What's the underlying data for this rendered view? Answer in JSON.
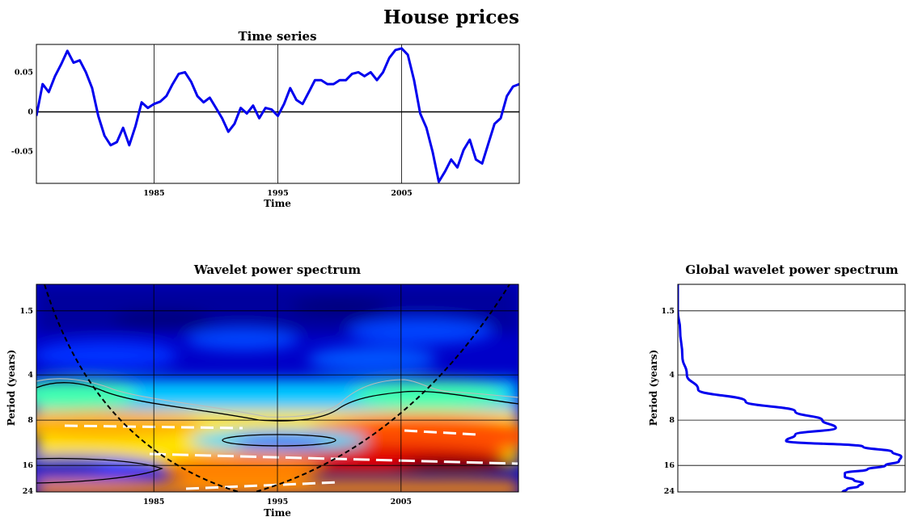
{
  "figure": {
    "title": "House prices",
    "title_color": "#e31a1c"
  },
  "chart_data": [
    {
      "type": "line",
      "title": "Time series",
      "xlabel": "Time",
      "ylabel": "",
      "xlim": [
        1975.5,
        2014.5
      ],
      "ylim": [
        -0.09,
        0.085
      ],
      "xticks": [
        1985,
        1995,
        2005
      ],
      "yticks": [
        0.05,
        0,
        -0.05
      ],
      "ytick_labels": [
        "0.05",
        "0",
        "-0.05"
      ],
      "grid": true,
      "line_color": "#0000ee",
      "series": [
        {
          "x": [
            1975.5,
            1976,
            1976.5,
            1977,
            1977.5,
            1978,
            1978.5,
            1979,
            1979.5,
            1980,
            1980.5,
            1981,
            1981.5,
            1982,
            1982.5,
            1983,
            1983.5,
            1984,
            1984.5,
            1985,
            1985.5,
            1986,
            1986.5,
            1987,
            1987.5,
            1988,
            1988.5,
            1989,
            1989.5,
            1990,
            1990.5,
            1991,
            1991.5,
            1992,
            1992.5,
            1993,
            1993.5,
            1994,
            1994.5,
            1995,
            1995.5,
            1996,
            1996.5,
            1997,
            1997.5,
            1998,
            1998.5,
            1999,
            1999.5,
            2000,
            2000.5,
            2001,
            2001.5,
            2002,
            2002.5,
            2003,
            2003.5,
            2004,
            2004.5,
            2005,
            2005.5,
            2006,
            2006.5,
            2007,
            2007.5,
            2008,
            2008.5,
            2009,
            2009.5,
            2010,
            2010.5,
            2011,
            2011.5,
            2012,
            2012.5,
            2013,
            2013.5,
            2014,
            2014.5
          ],
          "y": [
            -0.005,
            0.035,
            0.025,
            0.045,
            0.06,
            0.077,
            0.062,
            0.065,
            0.05,
            0.03,
            -0.005,
            -0.03,
            -0.042,
            -0.038,
            -0.02,
            -0.042,
            -0.018,
            0.012,
            0.005,
            0.01,
            0.013,
            0.02,
            0.035,
            0.048,
            0.05,
            0.038,
            0.02,
            0.012,
            0.018,
            0.005,
            -0.008,
            -0.025,
            -0.015,
            0.005,
            -0.002,
            0.008,
            -0.008,
            0.005,
            0.003,
            -0.005,
            0.01,
            0.03,
            0.015,
            0.01,
            0.025,
            0.04,
            0.04,
            0.035,
            0.035,
            0.04,
            0.04,
            0.048,
            0.05,
            0.045,
            0.05,
            0.04,
            0.05,
            0.068,
            0.078,
            0.08,
            0.072,
            0.04,
            -0.002,
            -0.02,
            -0.05,
            -0.088,
            -0.075,
            -0.06,
            -0.07,
            -0.048,
            -0.035,
            -0.06,
            -0.065,
            -0.04,
            -0.015,
            -0.008,
            0.02,
            0.032,
            0.035
          ]
        }
      ]
    },
    {
      "type": "heatmap",
      "title": "Wavelet power spectrum",
      "xlabel": "Time",
      "ylabel": "Period (years)",
      "xlim": [
        1975.5,
        2014.5
      ],
      "ylim": [
        1.0,
        24
      ],
      "y_scale": "log",
      "xticks": [
        1985,
        1995,
        2005
      ],
      "yticks": [
        1.5,
        4,
        8,
        16,
        24
      ],
      "ytick_labels": [
        "1.5",
        "4",
        "8",
        "16",
        "24"
      ],
      "grid": true,
      "colormap": "jet"
    },
    {
      "type": "line",
      "title": "Global wavelet power spectrum",
      "xlabel": "",
      "ylabel": "Period (years)",
      "ylim": [
        1.0,
        24
      ],
      "y_scale": "log",
      "yticks": [
        1.5,
        4,
        8,
        16,
        24
      ],
      "ytick_labels": [
        "1.5",
        "4",
        "8",
        "16",
        "24"
      ],
      "grid": true,
      "line_color": "#0000ee",
      "series": [
        {
          "period": [
            1.0,
            1.5,
            2.0,
            3.0,
            4.0,
            5.0,
            6.0,
            7.0,
            8.0,
            9.0,
            10.0,
            11.0,
            12.0,
            13.0,
            14.0,
            15.0,
            16.0,
            17.0,
            18.0,
            19.0,
            20.0,
            21.0,
            22.0,
            23.0,
            24.0
          ],
          "power": [
            0.0,
            0.0,
            0.01,
            0.02,
            0.04,
            0.09,
            0.3,
            0.52,
            0.64,
            0.7,
            0.52,
            0.48,
            0.82,
            0.95,
            0.99,
            0.98,
            0.92,
            0.84,
            0.74,
            0.74,
            0.78,
            0.82,
            0.8,
            0.75,
            0.73
          ]
        }
      ]
    }
  ]
}
